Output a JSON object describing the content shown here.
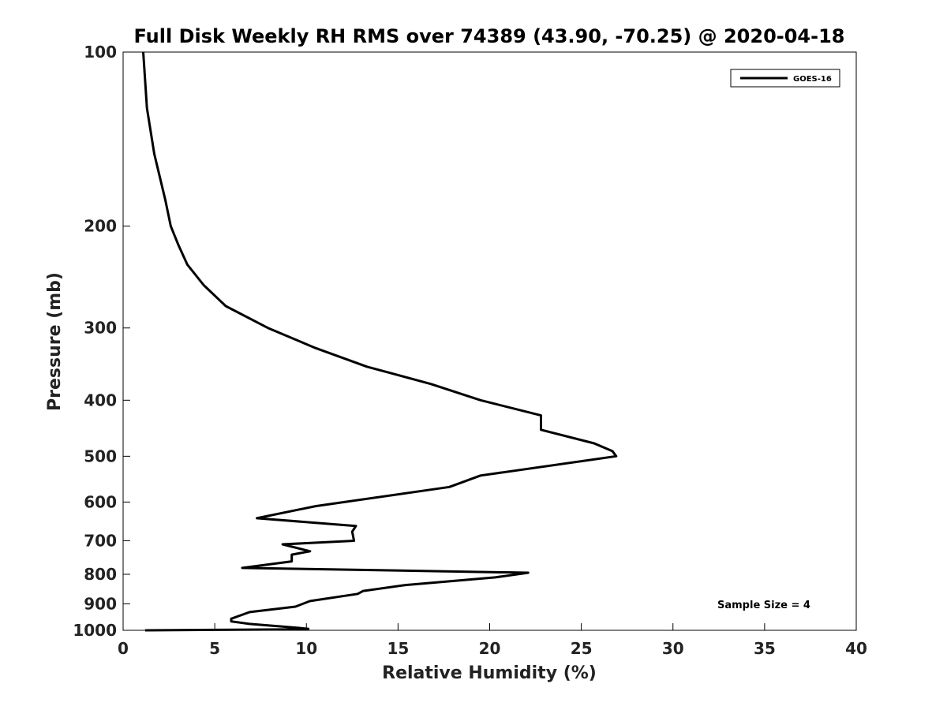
{
  "chart_data": {
    "type": "line",
    "title": "Full Disk Weekly RH RMS over 74389 (43.90, -70.25) @ 2020-04-18",
    "xlabel": "Relative Humidity (%)",
    "ylabel": "Pressure (mb)",
    "xlim": [
      0,
      40
    ],
    "ylim": [
      1000,
      100
    ],
    "yscale": "log",
    "y_reversed": true,
    "x_ticks": [
      0,
      5,
      10,
      15,
      20,
      25,
      30,
      35,
      40
    ],
    "y_ticks": [
      100,
      200,
      300,
      400,
      500,
      600,
      700,
      800,
      900,
      1000
    ],
    "grid": false,
    "legend_position": "top-right",
    "annotation": "Sample Size = 4",
    "series": [
      {
        "name": "GOES-16",
        "color": "#000000",
        "points": [
          [
            1.1,
            100
          ],
          [
            1.3,
            125
          ],
          [
            1.7,
            150
          ],
          [
            2.3,
            180
          ],
          [
            2.6,
            200
          ],
          [
            3.0,
            215
          ],
          [
            3.5,
            233
          ],
          [
            4.4,
            253
          ],
          [
            5.6,
            275
          ],
          [
            7.9,
            300
          ],
          [
            10.5,
            325
          ],
          [
            13.3,
            350
          ],
          [
            16.8,
            375
          ],
          [
            19.5,
            400
          ],
          [
            22.8,
            425
          ],
          [
            22.8,
            450
          ],
          [
            25.7,
            475
          ],
          [
            26.7,
            490
          ],
          [
            26.9,
            500
          ],
          [
            19.5,
            540
          ],
          [
            17.8,
            565
          ],
          [
            10.5,
            610
          ],
          [
            7.3,
            640
          ],
          [
            12.7,
            660
          ],
          [
            12.5,
            675
          ],
          [
            12.6,
            700
          ],
          [
            8.7,
            710
          ],
          [
            10.2,
            730
          ],
          [
            9.2,
            740
          ],
          [
            9.2,
            760
          ],
          [
            6.5,
            780
          ],
          [
            22.1,
            795
          ],
          [
            20.3,
            810
          ],
          [
            15.4,
            835
          ],
          [
            13.1,
            855
          ],
          [
            12.8,
            865
          ],
          [
            10.2,
            890
          ],
          [
            9.4,
            910
          ],
          [
            6.9,
            930
          ],
          [
            5.9,
            955
          ],
          [
            5.9,
            965
          ],
          [
            6.9,
            975
          ],
          [
            9.5,
            990
          ],
          [
            10.1,
            994
          ],
          [
            10.1,
            996
          ],
          [
            1.2,
            1000
          ]
        ]
      }
    ]
  }
}
